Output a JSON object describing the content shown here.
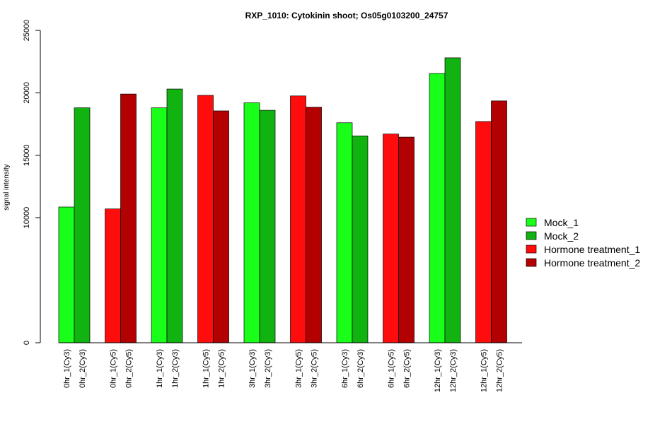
{
  "chart_data": {
    "type": "bar",
    "title": "RXP_1010: Cytokinin shoot; Os05g0103200_24757",
    "xlabel": "",
    "ylabel": "signal intensity",
    "y_ticks": [
      0,
      10000,
      15000,
      20000,
      25000
    ],
    "y_scale": "piecewise linear: 0 to 10000 compressed, 10000 to 25000 linear",
    "ylim": [
      0,
      25000
    ],
    "grid": false,
    "legend_position": "right",
    "legend": [
      {
        "label": "Mock_1",
        "color": "#1aff1a"
      },
      {
        "label": "Mock_2",
        "color": "#11b311"
      },
      {
        "label": "Hormone treatment_1",
        "color": "#ff0d0d"
      },
      {
        "label": "Hormone treatment_2",
        "color": "#b30000"
      }
    ],
    "bars": [
      {
        "label": "0hr_1(Cy3)",
        "value": 10850,
        "series": 0
      },
      {
        "label": "0hr_2(Cy3)",
        "value": 18800,
        "series": 1
      },
      {
        "label": "0hr_1(Cy5)",
        "value": 10700,
        "series": 2
      },
      {
        "label": "0hr_2(Cy5)",
        "value": 19900,
        "series": 3
      },
      {
        "label": "1hr_1(Cy3)",
        "value": 18800,
        "series": 0
      },
      {
        "label": "1hr_2(Cy3)",
        "value": 20300,
        "series": 1
      },
      {
        "label": "1hr_1(Cy5)",
        "value": 19800,
        "series": 2
      },
      {
        "label": "1hr_2(Cy5)",
        "value": 18550,
        "series": 3
      },
      {
        "label": "3hr_1(Cy3)",
        "value": 19200,
        "series": 0
      },
      {
        "label": "3hr_2(Cy3)",
        "value": 18600,
        "series": 1
      },
      {
        "label": "3hr_1(Cy5)",
        "value": 19750,
        "series": 2
      },
      {
        "label": "3hr_2(Cy5)",
        "value": 18850,
        "series": 3
      },
      {
        "label": "6hr_1(Cy3)",
        "value": 17600,
        "series": 0
      },
      {
        "label": "6hr_2(Cy3)",
        "value": 16550,
        "series": 1
      },
      {
        "label": "6hr_1(Cy5)",
        "value": 16700,
        "series": 2
      },
      {
        "label": "6hr_2(Cy5)",
        "value": 16450,
        "series": 3
      },
      {
        "label": "12hr_1(Cy3)",
        "value": 21550,
        "series": 0
      },
      {
        "label": "12hr_2(Cy3)",
        "value": 22800,
        "series": 1
      },
      {
        "label": "12hr_1(Cy5)",
        "value": 17700,
        "series": 2
      },
      {
        "label": "12hr_2(Cy5)",
        "value": 19350,
        "series": 3
      }
    ]
  }
}
